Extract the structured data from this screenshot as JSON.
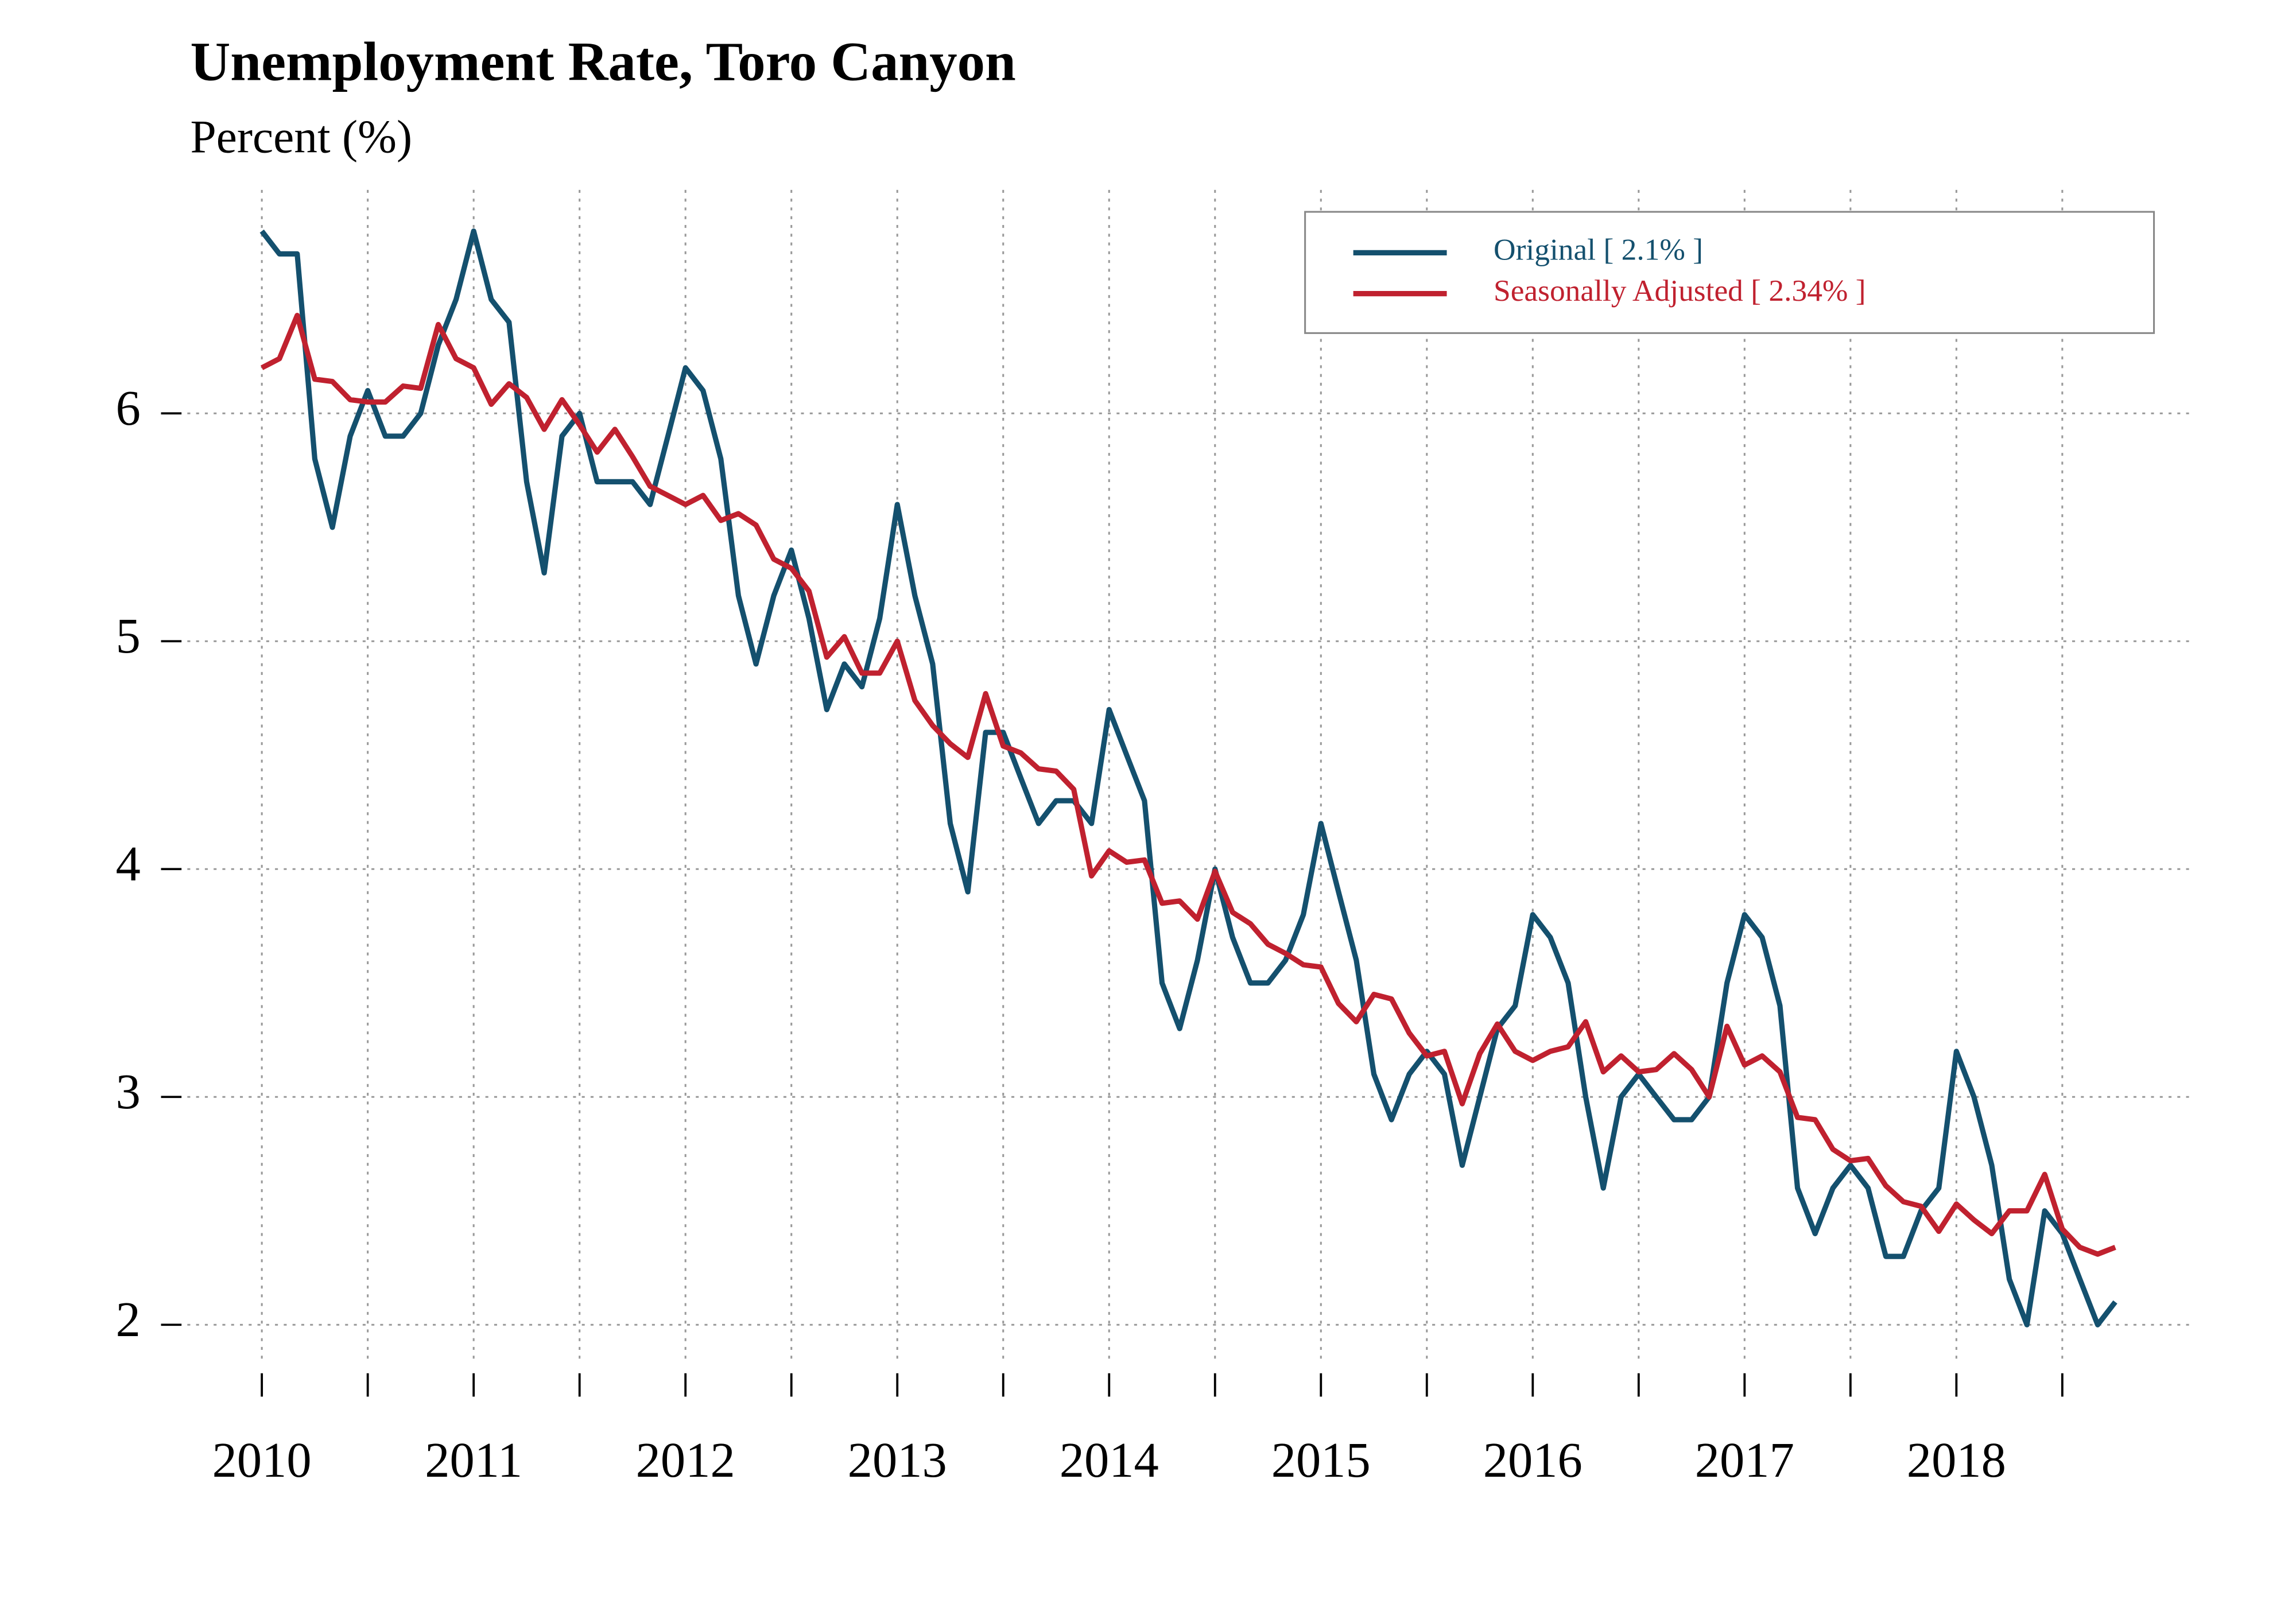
{
  "chart_data": {
    "type": "line",
    "title": "Unemployment Rate, Toro Canyon",
    "subtitle": "Percent (%)",
    "x": [
      2010,
      2010.083,
      2010.167,
      2010.25,
      2010.333,
      2010.417,
      2010.5,
      2010.583,
      2010.667,
      2010.75,
      2010.833,
      2010.917,
      2011,
      2011.083,
      2011.167,
      2011.25,
      2011.333,
      2011.417,
      2011.5,
      2011.583,
      2011.667,
      2011.75,
      2011.833,
      2011.917,
      2012,
      2012.083,
      2012.167,
      2012.25,
      2012.333,
      2012.417,
      2012.5,
      2012.583,
      2012.667,
      2012.75,
      2012.833,
      2012.917,
      2013,
      2013.083,
      2013.167,
      2013.25,
      2013.333,
      2013.417,
      2013.5,
      2013.583,
      2013.667,
      2013.75,
      2013.833,
      2013.917,
      2014,
      2014.083,
      2014.167,
      2014.25,
      2014.333,
      2014.417,
      2014.5,
      2014.583,
      2014.667,
      2014.75,
      2014.833,
      2014.917,
      2015,
      2015.083,
      2015.167,
      2015.25,
      2015.333,
      2015.417,
      2015.5,
      2015.583,
      2015.667,
      2015.75,
      2015.833,
      2015.917,
      2016,
      2016.083,
      2016.167,
      2016.25,
      2016.333,
      2016.417,
      2016.5,
      2016.583,
      2016.667,
      2016.75,
      2016.833,
      2016.917,
      2017,
      2017.083,
      2017.167,
      2017.25,
      2017.333,
      2017.417,
      2017.5,
      2017.583,
      2017.667,
      2017.75,
      2017.833,
      2017.917,
      2018,
      2018.083,
      2018.167,
      2018.25,
      2018.333,
      2018.417,
      2018.5,
      2018.583,
      2018.667,
      2018.75
    ],
    "series": [
      {
        "name": "Original [ 2.1% ]",
        "color": "#14506e",
        "values": [
          6.8,
          6.7,
          6.7,
          5.8,
          5.5,
          5.9,
          6.1,
          5.9,
          5.9,
          6.0,
          6.3,
          6.5,
          6.8,
          6.5,
          6.4,
          5.7,
          5.3,
          5.9,
          6.0,
          5.7,
          5.7,
          5.7,
          5.6,
          5.9,
          6.2,
          6.1,
          5.8,
          5.2,
          4.9,
          5.2,
          5.4,
          5.1,
          4.7,
          4.9,
          4.8,
          5.1,
          5.6,
          5.2,
          4.9,
          4.2,
          3.9,
          4.6,
          4.6,
          4.4,
          4.2,
          4.3,
          4.3,
          4.2,
          4.7,
          4.5,
          4.3,
          3.5,
          3.3,
          3.6,
          4.0,
          3.7,
          3.5,
          3.5,
          3.6,
          3.8,
          4.2,
          3.9,
          3.6,
          3.1,
          2.9,
          3.1,
          3.2,
          3.1,
          2.7,
          3.0,
          3.3,
          3.4,
          3.8,
          3.7,
          3.5,
          3.0,
          2.6,
          3.0,
          3.1,
          3.0,
          2.9,
          2.9,
          3.0,
          3.5,
          3.8,
          3.7,
          3.4,
          2.6,
          2.4,
          2.6,
          2.7,
          2.6,
          2.3,
          2.3,
          2.5,
          2.6,
          3.2,
          3.0,
          2.7,
          2.2,
          2.0,
          2.5,
          2.4,
          2.2,
          2.0,
          2.1
        ]
      },
      {
        "name": "Seasonally Adjusted [ 2.34% ]",
        "color": "#c0212f",
        "values": [
          6.2,
          6.24,
          6.43,
          6.15,
          6.14,
          6.06,
          6.05,
          6.05,
          6.12,
          6.11,
          6.39,
          6.24,
          6.2,
          6.04,
          6.13,
          6.07,
          5.93,
          6.06,
          5.95,
          5.83,
          5.93,
          5.81,
          5.68,
          5.64,
          5.6,
          5.64,
          5.53,
          5.56,
          5.51,
          5.36,
          5.32,
          5.22,
          4.93,
          5.02,
          4.86,
          4.86,
          5.0,
          4.74,
          4.63,
          4.55,
          4.49,
          4.77,
          4.54,
          4.51,
          4.44,
          4.43,
          4.35,
          3.97,
          4.08,
          4.03,
          4.04,
          3.85,
          3.86,
          3.78,
          3.99,
          3.81,
          3.76,
          3.67,
          3.63,
          3.58,
          3.57,
          3.41,
          3.33,
          3.45,
          3.43,
          3.28,
          3.18,
          3.2,
          2.97,
          3.19,
          3.32,
          3.2,
          3.16,
          3.2,
          3.22,
          3.33,
          3.11,
          3.18,
          3.11,
          3.12,
          3.19,
          3.12,
          3.0,
          3.31,
          3.14,
          3.18,
          3.11,
          2.91,
          2.9,
          2.77,
          2.72,
          2.73,
          2.61,
          2.54,
          2.52,
          2.41,
          2.53,
          2.46,
          2.4,
          2.5,
          2.5,
          2.66,
          2.42,
          2.34,
          2.31,
          2.34
        ]
      }
    ],
    "xlim": [
      2009.7,
      2019.05
    ],
    "xticks": [
      2010,
      2011,
      2012,
      2013,
      2014,
      2015,
      2016,
      2017,
      2018
    ],
    "xminorticks": [
      2010.5,
      2011.5,
      2012.5,
      2013.5,
      2014.5,
      2015.5,
      2016.5,
      2017.5,
      2018.5
    ],
    "ylim": [
      1.8,
      7.0
    ],
    "yticks": [
      2,
      3,
      4,
      5,
      6
    ],
    "grid": true,
    "legend": "top-right"
  }
}
